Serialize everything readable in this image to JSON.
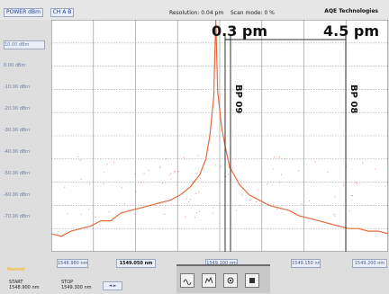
{
  "header": {
    "button_left_1": "POWER dBm",
    "button_left_2": "CH A B",
    "resolution": "Resolution: 0.04 pm",
    "scan_mode": "Scan mode: 0 %",
    "brand": "AQE Technologies"
  },
  "y_axis": {
    "top_label": "10.00 dBm",
    "labels": [
      "0.00 dBm",
      "-10.00 dBm",
      "-20.00 dBm",
      "-30.00 dBm",
      "-40.00 dBm",
      "-50.00 dBm",
      "-60.00 dBm",
      "-70.00 dBm"
    ]
  },
  "markers": {
    "m1_text": "0.3 pm",
    "m2_text": "4.5 pm",
    "bp1": "BP 09",
    "bp2": "BP 08"
  },
  "x_axis": {
    "left": "1548.980 nm",
    "center_left": "1549.050 nm",
    "center": "1549.100 nm",
    "right": "1549.150 nm",
    "far_right": "1549.200 nm"
  },
  "bottom": {
    "corner_label": "Nearest",
    "start_label": "START",
    "start_value": "1548.900 nm",
    "stop_label": "STOP",
    "stop_value": "1549.300 nm",
    "nav_btn": "◄ ►"
  },
  "chart_data": {
    "type": "line",
    "series": [
      {
        "values": [
          [
            0.0,
            -73
          ],
          [
            0.05,
            -74
          ],
          [
            0.1,
            -72
          ],
          [
            0.15,
            -71
          ],
          [
            0.2,
            -70
          ],
          [
            0.25,
            -68
          ],
          [
            0.3,
            -68
          ],
          [
            0.35,
            -65
          ],
          [
            0.4,
            -64
          ],
          [
            0.45,
            -63
          ],
          [
            0.5,
            -62
          ],
          [
            0.55,
            -61
          ],
          [
            0.6,
            -60
          ],
          [
            0.65,
            -58
          ],
          [
            0.7,
            -55
          ],
          [
            0.75,
            -50
          ],
          [
            0.78,
            -44
          ],
          [
            0.8,
            -35
          ],
          [
            0.82,
            -20
          ],
          [
            0.83,
            10
          ],
          [
            0.84,
            -18
          ],
          [
            0.86,
            -32
          ],
          [
            0.88,
            -40
          ],
          [
            0.9,
            -47
          ],
          [
            0.95,
            -54
          ],
          [
            1.0,
            -58
          ],
          [
            1.05,
            -60
          ],
          [
            1.1,
            -62
          ],
          [
            1.15,
            -63
          ],
          [
            1.2,
            -64
          ],
          [
            1.25,
            -66
          ],
          [
            1.3,
            -67
          ],
          [
            1.35,
            -68
          ],
          [
            1.4,
            -69
          ],
          [
            1.45,
            -70
          ],
          [
            1.5,
            -71
          ],
          [
            1.55,
            -71
          ],
          [
            1.6,
            -72
          ],
          [
            1.65,
            -72
          ],
          [
            1.7,
            -73
          ]
        ]
      }
    ],
    "xlim": [
      0,
      1.7
    ],
    "ylim": [
      -80,
      10
    ],
    "grid": true,
    "colors": {
      "trace": "#e46a3d",
      "grid": "#000000",
      "marker": "#333333"
    }
  }
}
